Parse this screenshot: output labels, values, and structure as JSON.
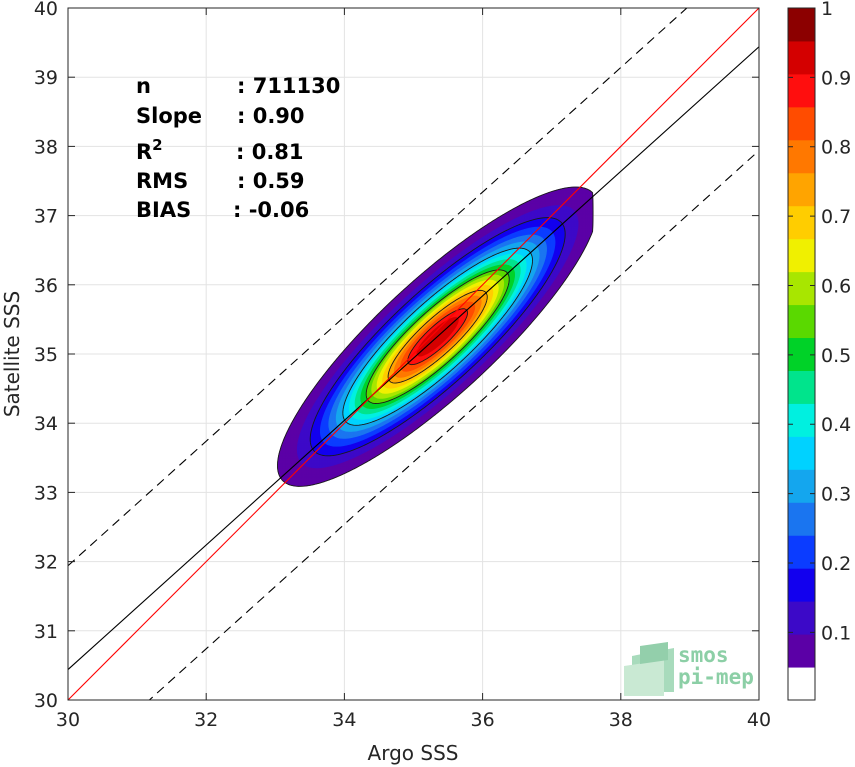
{
  "chart_data": {
    "type": "contour",
    "xlabel": "Argo SSS",
    "ylabel": "Satellite SSS",
    "xlim": [
      30,
      40
    ],
    "ylim": [
      30,
      40
    ],
    "xticks": [
      30,
      32,
      34,
      36,
      38,
      40
    ],
    "yticks": [
      30,
      31,
      32,
      33,
      34,
      35,
      36,
      37,
      38,
      39,
      40
    ],
    "grid": true,
    "stats": [
      {
        "label": "n",
        "value": ": 711130"
      },
      {
        "label": "Slope",
        "value": ": 0.90"
      },
      {
        "label": "R",
        "sup": "2",
        "value": ": 0.81"
      },
      {
        "label": "RMS",
        "value": ": 0.59"
      },
      {
        "label": "BIAS",
        "value": ": -0.06"
      }
    ],
    "lines": {
      "identity": {
        "slope": 1.0,
        "intercept": 0.0,
        "color": "#ff0000"
      },
      "regression": {
        "slope": 0.9,
        "intercept": 3.44,
        "color": "#000000"
      },
      "upper_bound": {
        "slope": 0.9,
        "intercept": 4.94,
        "color": "#000000",
        "style": "dashed"
      },
      "lower_bound": {
        "slope": 0.9,
        "intercept": 1.94,
        "color": "#000000",
        "style": "dashed"
      }
    },
    "density": {
      "center": [
        35.35,
        35.25
      ],
      "major_direction": [
        0.735,
        0.678
      ],
      "sigma_major": 1.25,
      "sigma_minor": 0.34,
      "xmin": 33.0,
      "xmax": 37.6
    },
    "colorbar": {
      "ticks": [
        0.1,
        0.2,
        0.3,
        0.4,
        0.5,
        0.6,
        0.7,
        0.8,
        0.9,
        1
      ],
      "tick_labels": [
        "0.1",
        "0.2",
        "0.3",
        "0.4",
        "0.5",
        "0.6",
        "0.7",
        "0.8",
        "0.9",
        "1"
      ],
      "levels": [
        0.05,
        0.1,
        0.15,
        0.2,
        0.25,
        0.3,
        0.35,
        0.4,
        0.45,
        0.5,
        0.55,
        0.6,
        0.65,
        0.7,
        0.75,
        0.8,
        0.85,
        0.9,
        0.95
      ],
      "colors": [
        "#ffffff",
        "#5b00a6",
        "#3c09c8",
        "#1200ee",
        "#0b3cff",
        "#1a75f0",
        "#14a6ee",
        "#00d2ff",
        "#00f0e0",
        "#00e48c",
        "#00d228",
        "#5ad900",
        "#a8e600",
        "#f0f000",
        "#ffcd00",
        "#ffa400",
        "#ff7800",
        "#ff4c00",
        "#ff0e0e",
        "#d40000",
        "#8c0000"
      ]
    }
  },
  "logo": {
    "line1": "smos",
    "line2": "pi-mep"
  }
}
